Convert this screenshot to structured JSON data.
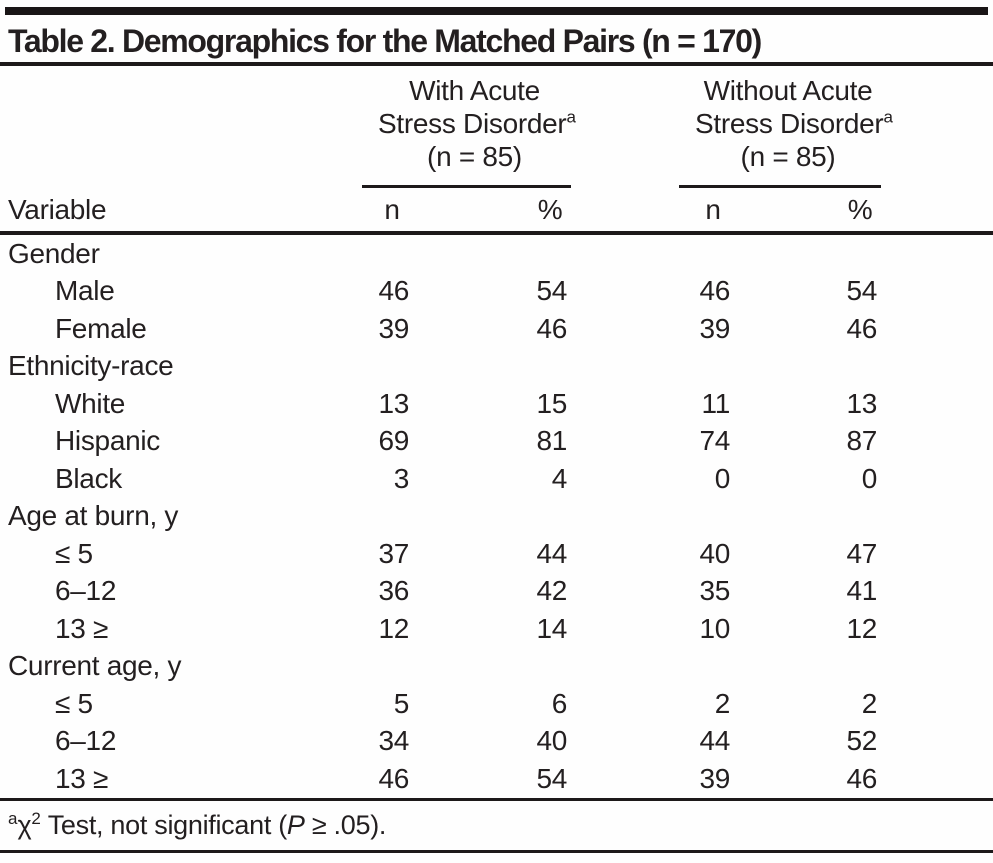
{
  "title": "Table 2. Demographics for the Matched Pairs (n = 170)",
  "colors": {
    "ink": "#231f20",
    "background": "#fefefe"
  },
  "header": {
    "variable_label": "Variable",
    "groups": [
      {
        "line1": "With Acute",
        "line2": "Stress Disorder",
        "superscript": "a",
        "line3": "(n = 85)"
      },
      {
        "line1": "Without Acute",
        "line2": "Stress Disorder",
        "superscript": "a",
        "line3": "(n = 85)"
      }
    ],
    "subcols": [
      "n",
      "%",
      "n",
      "%"
    ]
  },
  "rows": [
    {
      "label": "Gender",
      "indent": false,
      "values": []
    },
    {
      "label": "Male",
      "indent": true,
      "values": [
        "46",
        "54",
        "46",
        "54"
      ]
    },
    {
      "label": "Female",
      "indent": true,
      "values": [
        "39",
        "46",
        "39",
        "46"
      ]
    },
    {
      "label": "Ethnicity-race",
      "indent": false,
      "values": []
    },
    {
      "label": "White",
      "indent": true,
      "values": [
        "13",
        "15",
        "11",
        "13"
      ]
    },
    {
      "label": "Hispanic",
      "indent": true,
      "values": [
        "69",
        "81",
        "74",
        "87"
      ]
    },
    {
      "label": "Black",
      "indent": true,
      "values": [
        "3",
        "4",
        "0",
        "0"
      ]
    },
    {
      "label": "Age at burn, y",
      "indent": false,
      "values": []
    },
    {
      "label": "≤ 5",
      "indent": true,
      "values": [
        "37",
        "44",
        "40",
        "47"
      ]
    },
    {
      "label": "6–12",
      "indent": true,
      "values": [
        "36",
        "42",
        "35",
        "41"
      ]
    },
    {
      "label": "13 ≥",
      "indent": true,
      "values": [
        "12",
        "14",
        "10",
        "12"
      ]
    },
    {
      "label": "Current age, y",
      "indent": false,
      "values": []
    },
    {
      "label": "≤ 5",
      "indent": true,
      "values": [
        "5",
        "6",
        "2",
        "2"
      ]
    },
    {
      "label": "6–12",
      "indent": true,
      "values": [
        "34",
        "40",
        "44",
        "52"
      ]
    },
    {
      "label": "13 ≥",
      "indent": true,
      "values": [
        "46",
        "54",
        "39",
        "46"
      ]
    }
  ],
  "footnote": {
    "marker": "a",
    "chi": "χ",
    "chi_exponent": "2",
    "text_before_p": " Test, not significant (",
    "p_symbol": "P",
    "text_after_p": " ≥ .05)."
  }
}
